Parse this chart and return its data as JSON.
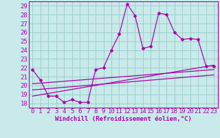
{
  "xlabel": "Windchill (Refroidissement éolien,°C)",
  "background_color": "#c8eaea",
  "grid_color": "#9ecece",
  "line_color": "#aa00aa",
  "spine_color": "#aa00aa",
  "xlim": [
    -0.5,
    23.5
  ],
  "ylim": [
    17.5,
    29.5
  ],
  "yticks": [
    18,
    19,
    20,
    21,
    22,
    23,
    24,
    25,
    26,
    27,
    28,
    29
  ],
  "xticks": [
    0,
    1,
    2,
    3,
    4,
    5,
    6,
    7,
    8,
    9,
    10,
    11,
    12,
    13,
    14,
    15,
    16,
    17,
    18,
    19,
    20,
    21,
    22,
    23
  ],
  "line1_x": [
    0,
    1,
    2,
    3,
    4,
    5,
    6,
    7,
    8,
    9,
    10,
    11,
    12,
    13,
    14,
    15,
    16,
    17,
    18,
    19,
    20,
    21,
    22,
    23
  ],
  "line1_y": [
    21.8,
    20.6,
    18.8,
    18.8,
    18.1,
    18.4,
    18.1,
    18.1,
    21.8,
    22.0,
    24.0,
    25.8,
    29.2,
    27.9,
    24.2,
    24.4,
    28.2,
    28.0,
    26.0,
    25.2,
    25.3,
    25.2,
    22.2,
    22.2
  ],
  "line2_x": [
    0,
    23
  ],
  "line2_y": [
    18.8,
    22.3
  ],
  "line3_x": [
    0,
    23
  ],
  "line3_y": [
    19.5,
    21.2
  ],
  "line4_x": [
    0,
    23
  ],
  "line4_y": [
    20.2,
    21.8
  ],
  "tick_fontsize": 6.5,
  "xlabel_fontsize": 6.5
}
